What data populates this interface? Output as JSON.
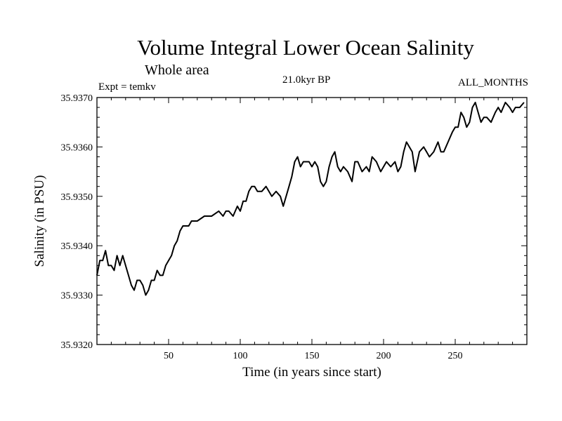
{
  "chart_data": {
    "type": "line",
    "title": "Volume Integral Lower Ocean Salinity",
    "subtitle": "Whole area",
    "experiment": "Expt = temkv",
    "period": "21.0kyr BP",
    "months": "ALL_MONTHS",
    "xlabel": "Time (in years since start)",
    "ylabel": "Salinity (in PSU)",
    "xlim": [
      0,
      300
    ],
    "ylim": [
      35.932,
      35.937
    ],
    "x_ticks": [
      50,
      100,
      150,
      200,
      250
    ],
    "y_ticks": [
      "35.9320",
      "35.9330",
      "35.9340",
      "35.9350",
      "35.9360",
      "35.9370"
    ],
    "series": [
      {
        "name": "salinity",
        "x": [
          0,
          2,
          4,
          6,
          8,
          10,
          12,
          14,
          16,
          18,
          20,
          22,
          24,
          26,
          28,
          30,
          32,
          34,
          36,
          38,
          40,
          42,
          44,
          46,
          48,
          50,
          52,
          54,
          56,
          58,
          60,
          62,
          64,
          66,
          68,
          70,
          75,
          80,
          85,
          88,
          90,
          92,
          95,
          98,
          100,
          102,
          104,
          106,
          108,
          110,
          112,
          115,
          118,
          120,
          122,
          125,
          128,
          130,
          132,
          134,
          136,
          138,
          140,
          142,
          144,
          146,
          148,
          150,
          152,
          154,
          156,
          158,
          160,
          162,
          164,
          166,
          168,
          170,
          172,
          175,
          178,
          180,
          182,
          185,
          188,
          190,
          192,
          195,
          198,
          200,
          202,
          205,
          208,
          210,
          212,
          214,
          216,
          218,
          220,
          222,
          225,
          228,
          230,
          232,
          235,
          238,
          240,
          242,
          245,
          248,
          250,
          252,
          254,
          256,
          258,
          260,
          262,
          264,
          266,
          268,
          270,
          272,
          275,
          278,
          280,
          282,
          285,
          288,
          290,
          292,
          295,
          298
        ],
        "values": [
          35.9334,
          35.9337,
          35.9337,
          35.9339,
          35.9336,
          35.9336,
          35.9335,
          35.9338,
          35.9336,
          35.9338,
          35.9336,
          35.9334,
          35.9332,
          35.9331,
          35.9333,
          35.9333,
          35.9332,
          35.933,
          35.9331,
          35.9333,
          35.9333,
          35.9335,
          35.9334,
          35.9334,
          35.9336,
          35.9337,
          35.9338,
          35.934,
          35.9341,
          35.9343,
          35.9344,
          35.9344,
          35.9344,
          35.9345,
          35.9345,
          35.9345,
          35.9346,
          35.9346,
          35.9347,
          35.9346,
          35.9347,
          35.9347,
          35.9346,
          35.9348,
          35.9347,
          35.9349,
          35.9349,
          35.9351,
          35.9352,
          35.9352,
          35.9351,
          35.9351,
          35.9352,
          35.9351,
          35.935,
          35.9351,
          35.935,
          35.9348,
          35.935,
          35.9352,
          35.9354,
          35.9357,
          35.9358,
          35.9356,
          35.9357,
          35.9357,
          35.9357,
          35.9356,
          35.9357,
          35.9356,
          35.9353,
          35.9352,
          35.9353,
          35.9356,
          35.9358,
          35.9359,
          35.9356,
          35.9355,
          35.9356,
          35.9355,
          35.9353,
          35.9357,
          35.9357,
          35.9355,
          35.9356,
          35.9355,
          35.9358,
          35.9357,
          35.9355,
          35.9356,
          35.9357,
          35.9356,
          35.9357,
          35.9355,
          35.9356,
          35.9359,
          35.9361,
          35.936,
          35.9359,
          35.9355,
          35.9359,
          35.936,
          35.9359,
          35.9358,
          35.9359,
          35.9361,
          35.9359,
          35.9359,
          35.9361,
          35.9363,
          35.9364,
          35.9364,
          35.9367,
          35.9366,
          35.9364,
          35.9365,
          35.9368,
          35.9369,
          35.9367,
          35.9365,
          35.9366,
          35.9366,
          35.9365,
          35.9367,
          35.9368,
          35.9367,
          35.9369,
          35.9368,
          35.9367,
          35.9368,
          35.9368,
          35.9369
        ]
      }
    ]
  }
}
